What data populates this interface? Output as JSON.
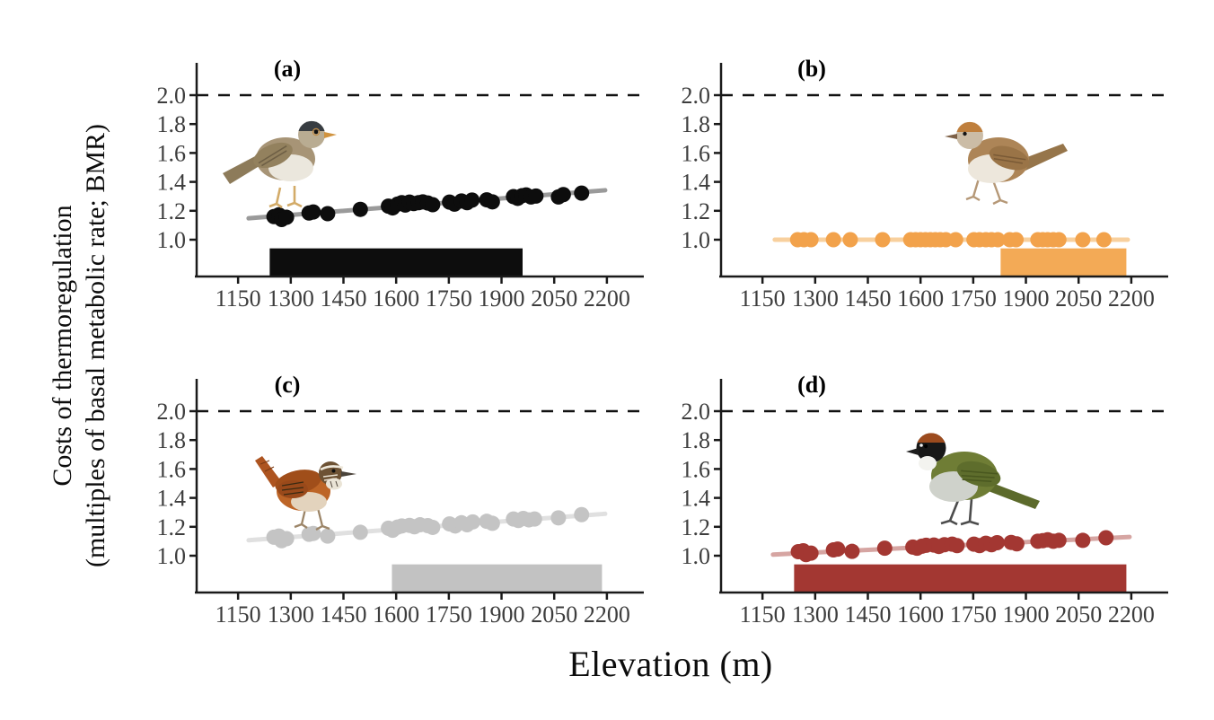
{
  "chart_data": {
    "type": "scatter",
    "xlabel": "Elevation (m)",
    "ylabel_line1": "Costs of thermoregulation",
    "ylabel_line2": "(multiples of basal metabolic rate; BMR)",
    "x_ticks": [
      1150,
      1300,
      1450,
      1600,
      1750,
      1900,
      2050,
      2200
    ],
    "y_ticks": [
      "1.0",
      "1.2",
      "1.4",
      "1.6",
      "1.8",
      "2.0"
    ],
    "x_domain": [
      1032,
      2300
    ],
    "y_domain": [
      0.745,
      2.25
    ],
    "reference_line": 2.0,
    "bar_top": 0.94,
    "grid": "off",
    "legend": "none",
    "panels": [
      {
        "id": "a",
        "label": "(a)",
        "point_color": "#0d0d0d",
        "line_color": "#9a9a9a",
        "bar_color": "#0d0d0d",
        "bar_range": [
          1240,
          1960
        ],
        "trend": {
          "x": [
            1180,
            2195
          ],
          "y": [
            1.148,
            1.342
          ]
        },
        "points": [
          [
            1252,
            1.16
          ],
          [
            1266,
            1.172
          ],
          [
            1274,
            1.14
          ],
          [
            1288,
            1.155
          ],
          [
            1352,
            1.185
          ],
          [
            1364,
            1.192
          ],
          [
            1405,
            1.18
          ],
          [
            1498,
            1.21
          ],
          [
            1578,
            1.232
          ],
          [
            1590,
            1.22
          ],
          [
            1604,
            1.246
          ],
          [
            1616,
            1.256
          ],
          [
            1626,
            1.24
          ],
          [
            1638,
            1.26
          ],
          [
            1650,
            1.25
          ],
          [
            1664,
            1.256
          ],
          [
            1676,
            1.262
          ],
          [
            1690,
            1.254
          ],
          [
            1704,
            1.242
          ],
          [
            1752,
            1.26
          ],
          [
            1766,
            1.246
          ],
          [
            1786,
            1.268
          ],
          [
            1802,
            1.256
          ],
          [
            1816,
            1.274
          ],
          [
            1858,
            1.276
          ],
          [
            1874,
            1.262
          ],
          [
            1934,
            1.298
          ],
          [
            1946,
            1.286
          ],
          [
            1958,
            1.304
          ],
          [
            1970,
            1.31
          ],
          [
            1984,
            1.296
          ],
          [
            1998,
            1.302
          ],
          [
            2062,
            1.296
          ],
          [
            2076,
            1.312
          ],
          [
            2128,
            1.322
          ]
        ]
      },
      {
        "id": "b",
        "label": "(b)",
        "point_color": "#f2a24b",
        "line_color": "#f8d09e",
        "bar_color": "#f3aa56",
        "bar_range": [
          1828,
          2186
        ],
        "trend": {
          "x": [
            1185,
            2190
          ],
          "y": [
            1.0,
            1.0
          ]
        },
        "points": [
          [
            1250,
            1.0
          ],
          [
            1268,
            1.0
          ],
          [
            1288,
            1.0
          ],
          [
            1352,
            1.0
          ],
          [
            1400,
            1.0
          ],
          [
            1492,
            1.0
          ],
          [
            1572,
            1.0
          ],
          [
            1586,
            1.0
          ],
          [
            1600,
            1.0
          ],
          [
            1614,
            1.0
          ],
          [
            1628,
            1.0
          ],
          [
            1642,
            1.0
          ],
          [
            1656,
            1.0
          ],
          [
            1672,
            1.0
          ],
          [
            1700,
            1.0
          ],
          [
            1752,
            1.0
          ],
          [
            1768,
            1.0
          ],
          [
            1786,
            1.0
          ],
          [
            1802,
            1.0
          ],
          [
            1820,
            1.0
          ],
          [
            1854,
            1.0
          ],
          [
            1872,
            1.0
          ],
          [
            1934,
            1.0
          ],
          [
            1948,
            1.0
          ],
          [
            1962,
            1.0
          ],
          [
            1978,
            1.0
          ],
          [
            1994,
            1.0
          ],
          [
            2062,
            1.0
          ],
          [
            2122,
            1.0
          ]
        ]
      },
      {
        "id": "c",
        "label": "(c)",
        "point_color": "#c4c4c4",
        "line_color": "#e0e0e0",
        "bar_color": "#c2c2c2",
        "bar_range": [
          1588,
          2186
        ],
        "trend": {
          "x": [
            1180,
            2195
          ],
          "y": [
            1.107,
            1.29
          ]
        },
        "points": [
          [
            1252,
            1.128
          ],
          [
            1266,
            1.136
          ],
          [
            1274,
            1.104
          ],
          [
            1288,
            1.118
          ],
          [
            1352,
            1.148
          ],
          [
            1364,
            1.154
          ],
          [
            1405,
            1.136
          ],
          [
            1498,
            1.162
          ],
          [
            1578,
            1.19
          ],
          [
            1590,
            1.176
          ],
          [
            1604,
            1.198
          ],
          [
            1616,
            1.206
          ],
          [
            1638,
            1.21
          ],
          [
            1652,
            1.2
          ],
          [
            1668,
            1.214
          ],
          [
            1690,
            1.208
          ],
          [
            1704,
            1.196
          ],
          [
            1752,
            1.22
          ],
          [
            1768,
            1.206
          ],
          [
            1786,
            1.228
          ],
          [
            1802,
            1.214
          ],
          [
            1818,
            1.234
          ],
          [
            1858,
            1.238
          ],
          [
            1874,
            1.224
          ],
          [
            1934,
            1.254
          ],
          [
            1948,
            1.244
          ],
          [
            1962,
            1.258
          ],
          [
            1978,
            1.248
          ],
          [
            1994,
            1.254
          ],
          [
            2062,
            1.262
          ],
          [
            2128,
            1.284
          ]
        ]
      },
      {
        "id": "d",
        "label": "(d)",
        "point_color": "#a33732",
        "line_color": "#d6a5a2",
        "bar_color": "#a33732",
        "bar_range": [
          1240,
          2186
        ],
        "trend": {
          "x": [
            1180,
            2195
          ],
          "y": [
            1.008,
            1.13
          ]
        },
        "points": [
          [
            1252,
            1.028
          ],
          [
            1266,
            1.034
          ],
          [
            1274,
            1.008
          ],
          [
            1288,
            1.018
          ],
          [
            1352,
            1.04
          ],
          [
            1364,
            1.046
          ],
          [
            1405,
            1.03
          ],
          [
            1498,
            1.052
          ],
          [
            1578,
            1.06
          ],
          [
            1590,
            1.052
          ],
          [
            1604,
            1.066
          ],
          [
            1616,
            1.072
          ],
          [
            1638,
            1.074
          ],
          [
            1652,
            1.064
          ],
          [
            1668,
            1.076
          ],
          [
            1690,
            1.08
          ],
          [
            1704,
            1.07
          ],
          [
            1752,
            1.08
          ],
          [
            1768,
            1.07
          ],
          [
            1786,
            1.086
          ],
          [
            1802,
            1.076
          ],
          [
            1818,
            1.09
          ],
          [
            1858,
            1.092
          ],
          [
            1874,
            1.082
          ],
          [
            1934,
            1.1
          ],
          [
            1948,
            1.104
          ],
          [
            1962,
            1.11
          ],
          [
            1978,
            1.1
          ],
          [
            1994,
            1.106
          ],
          [
            2062,
            1.106
          ],
          [
            2128,
            1.124
          ]
        ]
      }
    ]
  },
  "colors": {
    "axis": "#1a1a1a",
    "tick_label": "#3d3d3d",
    "reference_line": "#111111",
    "background": "#ffffff"
  }
}
